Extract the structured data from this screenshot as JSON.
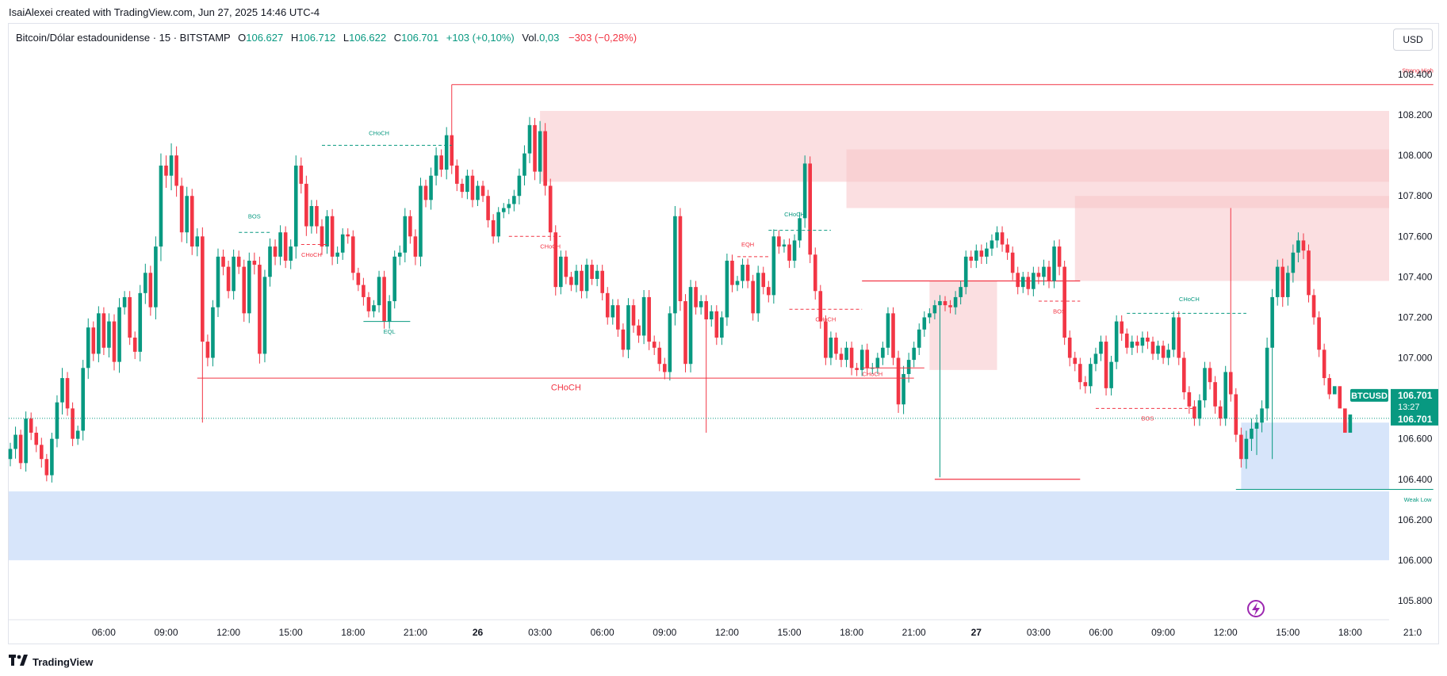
{
  "header": {
    "credit": "IsaiAlexei created with TradingView.com, Jun 27, 2025 14:46 UTC-4"
  },
  "legend": {
    "symbol": "Bitcoin/Dólar estadounidense · 15 · BITSTAMP",
    "open_label": "O",
    "open": "106.627",
    "high_label": "H",
    "high": "106.712",
    "low_label": "L",
    "low": "106.622",
    "close_label": "C",
    "close": "106.701",
    "change": "+103 (+0,10%)",
    "vol_label": "Vol.",
    "vol": "0,03",
    "vol_change": "−303 (−0,28%)"
  },
  "currency_button": "USD",
  "footer": {
    "brand": "TradingView"
  },
  "colors": {
    "up": "#089981",
    "down": "#f23645",
    "supply_zone": "#f7c5c8",
    "demand_zone": "#bcd3f7",
    "price_tag": "#089981"
  },
  "chart_data": {
    "type": "candlestick",
    "instrument": "BTCUSD",
    "ylim": [
      105.75,
      108.5
    ],
    "y_ticks": [
      "108.400",
      "108.200",
      "108.000",
      "107.800",
      "107.600",
      "107.400",
      "107.200",
      "107.000",
      "106.800",
      "106.600",
      "106.400",
      "106.200",
      "106.000",
      "105.800"
    ],
    "y_tick_values": [
      108.4,
      108.2,
      108.0,
      107.8,
      107.6,
      107.4,
      107.2,
      107.0,
      106.8,
      106.6,
      106.4,
      106.2,
      106.0,
      105.8
    ],
    "x_ticks": [
      {
        "label": "06:00",
        "i": 18
      },
      {
        "label": "09:00",
        "i": 30
      },
      {
        "label": "12:00",
        "i": 42
      },
      {
        "label": "15:00",
        "i": 54
      },
      {
        "label": "18:00",
        "i": 66
      },
      {
        "label": "21:00",
        "i": 78
      },
      {
        "label": "26",
        "i": 90
      },
      {
        "label": "03:00",
        "i": 102
      },
      {
        "label": "06:00",
        "i": 114
      },
      {
        "label": "09:00",
        "i": 126
      },
      {
        "label": "12:00",
        "i": 138
      },
      {
        "label": "15:00",
        "i": 150
      },
      {
        "label": "18:00",
        "i": 162
      },
      {
        "label": "21:00",
        "i": 174
      },
      {
        "label": "27",
        "i": 186
      },
      {
        "label": "03:00",
        "i": 198
      },
      {
        "label": "06:00",
        "i": 210
      },
      {
        "label": "09:00",
        "i": 222
      },
      {
        "label": "12:00",
        "i": 234
      },
      {
        "label": "15:00",
        "i": 246
      },
      {
        "label": "18:00",
        "i": 258
      },
      {
        "label": "21:0",
        "i": 270
      }
    ],
    "closes": [
      106.55,
      106.62,
      106.48,
      106.7,
      106.63,
      106.57,
      106.5,
      106.42,
      106.6,
      106.78,
      106.9,
      106.75,
      106.6,
      106.64,
      106.95,
      107.15,
      107.02,
      107.22,
      107.05,
      107.18,
      106.98,
      107.25,
      107.3,
      107.1,
      107.03,
      107.32,
      107.42,
      107.25,
      107.55,
      107.95,
      107.9,
      108.0,
      107.85,
      107.62,
      107.8,
      107.55,
      107.6,
      107.08,
      107.0,
      107.25,
      107.5,
      107.45,
      107.33,
      107.5,
      107.45,
      107.22,
      107.48,
      107.46,
      107.02,
      107.4,
      107.55,
      107.5,
      107.62,
      107.48,
      107.55,
      107.95,
      107.86,
      107.65,
      107.75,
      107.65,
      107.55,
      107.7,
      107.5,
      107.52,
      107.61,
      107.6,
      107.42,
      107.36,
      107.3,
      107.23,
      107.26,
      107.4,
      107.18,
      107.28,
      107.5,
      107.52,
      107.7,
      107.6,
      107.5,
      107.85,
      107.78,
      107.9,
      108.0,
      107.93,
      108.1,
      107.95,
      107.86,
      107.82,
      107.9,
      107.78,
      107.85,
      107.8,
      107.68,
      107.6,
      107.72,
      107.74,
      107.76,
      107.8,
      107.9,
      108.01,
      108.15,
      107.92,
      108.12,
      107.85,
      107.62,
      107.35,
      107.5,
      107.4,
      107.36,
      107.43,
      107.33,
      107.46,
      107.39,
      107.43,
      107.32,
      107.2,
      107.26,
      107.14,
      107.04,
      107.26,
      107.16,
      107.11,
      107.3,
      107.08,
      107.05,
      106.97,
      106.93,
      107.22,
      107.7,
      107.28,
      106.97,
      107.35,
      107.25,
      107.28,
      107.19,
      107.23,
      107.1,
      107.2,
      107.48,
      107.36,
      107.38,
      107.46,
      107.38,
      107.22,
      107.42,
      107.35,
      107.31,
      107.6,
      107.55,
      107.56,
      107.48,
      107.58,
      107.69,
      107.96,
      107.51,
      107.33,
      107.18,
      107.0,
      107.1,
      107.02,
      106.99,
      107.05,
      106.95,
      106.94,
      107.04,
      106.95,
      106.95,
      107.0,
      107.05,
      107.22,
      107.0,
      106.77,
      106.92,
      106.99,
      107.05,
      107.14,
      107.2,
      107.22,
      107.26,
      107.28,
      107.26,
      107.25,
      107.3,
      107.35,
      107.5,
      107.48,
      107.53,
      107.5,
      107.54,
      107.58,
      107.62,
      107.56,
      107.52,
      107.42,
      107.35,
      107.4,
      107.34,
      107.42,
      107.4,
      107.45,
      107.38,
      107.55,
      107.45,
      107.1,
      107.0,
      106.97,
      106.88,
      106.86,
      106.97,
      107.02,
      107.08,
      106.85,
      106.98,
      107.18,
      107.12,
      107.05,
      107.08,
      107.06,
      107.1,
      107.08,
      107.02,
      107.06,
      107.0,
      107.04,
      107.2,
      107.0,
      106.83,
      106.76,
      106.7,
      106.79,
      106.95,
      106.88,
      106.76,
      106.7,
      106.93,
      106.82,
      106.62,
      106.5,
      106.6,
      106.65,
      106.68,
      106.75,
      107.05,
      107.3,
      107.45,
      107.3,
      107.42,
      107.52,
      107.58,
      107.53,
      107.31,
      107.2,
      107.04,
      106.9,
      106.82,
      106.86,
      106.75,
      106.63,
      106.72
    ],
    "wick": [
      0.06,
      0.08,
      0.05,
      0.07,
      0.06,
      0.06,
      0.07,
      0.05,
      0.06,
      0.07,
      0.1,
      0.06,
      0.06,
      0.05,
      0.08,
      0.09,
      0.06,
      0.07,
      0.06,
      0.08,
      0.07,
      0.09,
      0.06,
      0.06,
      0.06,
      0.08,
      0.09,
      0.07,
      0.1,
      0.12,
      0.1,
      0.12,
      0.09,
      0.08,
      0.09,
      0.07,
      0.08,
      0.09,
      0.07,
      0.07,
      0.08,
      0.07,
      0.06,
      0.07,
      0.06,
      0.07,
      0.08,
      0.08,
      0.08,
      0.07,
      0.08,
      0.07,
      0.07,
      0.06,
      0.07,
      0.1,
      0.08,
      0.08,
      0.06,
      0.06,
      0.07,
      0.06,
      0.07,
      0.06,
      0.06,
      0.06,
      0.06,
      0.05,
      0.07,
      0.05,
      0.05,
      0.06,
      0.06,
      0.06,
      0.06,
      0.07,
      0.08,
      0.06,
      0.07,
      0.08,
      0.06,
      0.08,
      0.08,
      0.06,
      0.08,
      0.07,
      0.06,
      0.05,
      0.06,
      0.06,
      0.05,
      0.05,
      0.06,
      0.06,
      0.05,
      0.05,
      0.05,
      0.06,
      0.07,
      0.08,
      0.08,
      0.07,
      0.1,
      0.08,
      0.07,
      0.07,
      0.06,
      0.06,
      0.05,
      0.06,
      0.06,
      0.06,
      0.05,
      0.06,
      0.06,
      0.06,
      0.06,
      0.06,
      0.06,
      0.07,
      0.06,
      0.06,
      0.07,
      0.07,
      0.06,
      0.06,
      0.06,
      0.07,
      0.1,
      0.08,
      0.07,
      0.07,
      0.06,
      0.06,
      0.06,
      0.06,
      0.06,
      0.06,
      0.07,
      0.06,
      0.05,
      0.06,
      0.06,
      0.06,
      0.07,
      0.06,
      0.06,
      0.07,
      0.06,
      0.05,
      0.06,
      0.06,
      0.06,
      0.08,
      0.07,
      0.07,
      0.06,
      0.06,
      0.06,
      0.05,
      0.06,
      0.06,
      0.06,
      0.05,
      0.05,
      0.06,
      0.05,
      0.05,
      0.06,
      0.06,
      0.06,
      0.07,
      0.08,
      0.07,
      0.06,
      0.06,
      0.06,
      0.05,
      0.05,
      0.06,
      0.05,
      0.05,
      0.06,
      0.06,
      0.06,
      0.06,
      0.06,
      0.06,
      0.06,
      0.06,
      0.06,
      0.06,
      0.06,
      0.06,
      0.06,
      0.05,
      0.05,
      0.06,
      0.06,
      0.07,
      0.06,
      0.06,
      0.07,
      0.06,
      0.07,
      0.06,
      0.06,
      0.06,
      0.06,
      0.06,
      0.06,
      0.06,
      0.06,
      0.06,
      0.06,
      0.05,
      0.06,
      0.06,
      0.06,
      0.06,
      0.05,
      0.05,
      0.05,
      0.06,
      0.06,
      0.06,
      0.06,
      0.06,
      0.06,
      0.06,
      0.06,
      0.06,
      0.06,
      0.06,
      0.06,
      0.06,
      0.06,
      0.07,
      0.08,
      0.1,
      0.08,
      0.08,
      0.1,
      0.08,
      0.07,
      0.08,
      0.07,
      0.08,
      0.08,
      0.07,
      0.06,
      0.06,
      0.06,
      0.06,
      0.04
    ],
    "special_wicks": [
      {
        "i": 37,
        "low": 106.68
      },
      {
        "i": 85,
        "high": 108.35
      },
      {
        "i": 134,
        "low": 106.63
      },
      {
        "i": 179,
        "low": 106.41
      },
      {
        "i": 235,
        "high": 107.74
      },
      {
        "i": 240,
        "low": 106.52
      },
      {
        "i": 243,
        "low": 106.5
      }
    ],
    "zones": [
      {
        "kind": "supply",
        "i0": 102,
        "y0": 107.87,
        "y1": 108.22
      },
      {
        "kind": "supply",
        "i0": 161,
        "y0": 107.74,
        "y1": 108.03
      },
      {
        "kind": "supply",
        "i0": 205,
        "y0": 107.38,
        "y1": 107.8
      },
      {
        "kind": "supply-light",
        "i0": 177,
        "i1": 190,
        "y0": 106.94,
        "y1": 107.38
      },
      {
        "kind": "demand",
        "i0": 0,
        "y0": 106.0,
        "y1": 106.34
      },
      {
        "kind": "demand",
        "i0": 237,
        "y0": 106.35,
        "y1": 106.68
      }
    ],
    "structure": [
      {
        "label": "CHoCH",
        "color": "up",
        "dash": true,
        "i0": 60,
        "i1": 85,
        "y": 108.05,
        "tx": 71,
        "ty": 108.1
      },
      {
        "label": "BOS",
        "color": "up",
        "dash": true,
        "i0": 44,
        "i1": 50,
        "y": 107.62,
        "tx": 47,
        "ty": 107.69
      },
      {
        "label": "CHoCH",
        "color": "down",
        "dash": true,
        "i0": 56,
        "i1": 61,
        "y": 107.56,
        "tx": 58,
        "ty": 107.5
      },
      {
        "label": "EQL",
        "color": "up",
        "dash": false,
        "i0": 68,
        "i1": 77,
        "y": 107.18,
        "tx": 73,
        "ty": 107.12
      },
      {
        "label": "CHoCH",
        "color": "down",
        "dash": true,
        "i0": 96,
        "i1": 106,
        "y": 107.6,
        "tx": 104,
        "ty": 107.54
      },
      {
        "label": "CHoCH",
        "color": "down",
        "dash": false,
        "i0": 36,
        "i1": 174,
        "y": 106.9,
        "tx": 107,
        "ty": 106.84
      },
      {
        "label": "CHoCH",
        "color": "up",
        "dash": true,
        "i0": 146,
        "i1": 158,
        "y": 107.63,
        "tx": 151,
        "ty": 107.7
      },
      {
        "label": "EQH",
        "color": "down",
        "dash": true,
        "i0": 140,
        "i1": 146,
        "y": 107.5,
        "tx": 142,
        "ty": 107.55
      },
      {
        "label": "CHoCH",
        "color": "down",
        "dash": true,
        "i0": 150,
        "i1": 164,
        "y": 107.24,
        "tx": 157,
        "ty": 107.18
      },
      {
        "label": "CHoCH",
        "color": "down",
        "dash": false,
        "i0": 164,
        "i1": 176,
        "y": 106.95,
        "tx": 166,
        "ty": 106.91
      },
      {
        "label": "BOS",
        "color": "down",
        "dash": true,
        "i0": 198,
        "i1": 206,
        "y": 107.28,
        "tx": 202,
        "ty": 107.22
      },
      {
        "label": "CHoCH",
        "color": "up",
        "dash": true,
        "i0": 215,
        "i1": 238,
        "y": 107.22,
        "tx": 227,
        "ty": 107.28
      },
      {
        "label": "BOS",
        "color": "down",
        "dash": true,
        "i0": 209,
        "i1": 228,
        "y": 106.75,
        "tx": 219,
        "ty": 106.69
      },
      {
        "label": "Strong High",
        "color": "down",
        "dash": false,
        "i0": 85,
        "i1": 274,
        "y": 108.35,
        "tx": 271,
        "ty": 108.41
      },
      {
        "label": "Weak Low",
        "color": "up",
        "dash": false,
        "i0": 236,
        "i1": 274,
        "y": 106.35,
        "tx": 271,
        "ty": 106.29
      }
    ],
    "extra_lines": [
      {
        "color": "down",
        "i0": 164,
        "i1": 206,
        "y": 107.38
      },
      {
        "color": "down",
        "i0": 178,
        "i1": 206,
        "y": 106.4
      }
    ],
    "price_tag": {
      "label": "BTCUSD",
      "price": "106.701",
      "countdown": "13:27",
      "value": 106.701
    }
  }
}
